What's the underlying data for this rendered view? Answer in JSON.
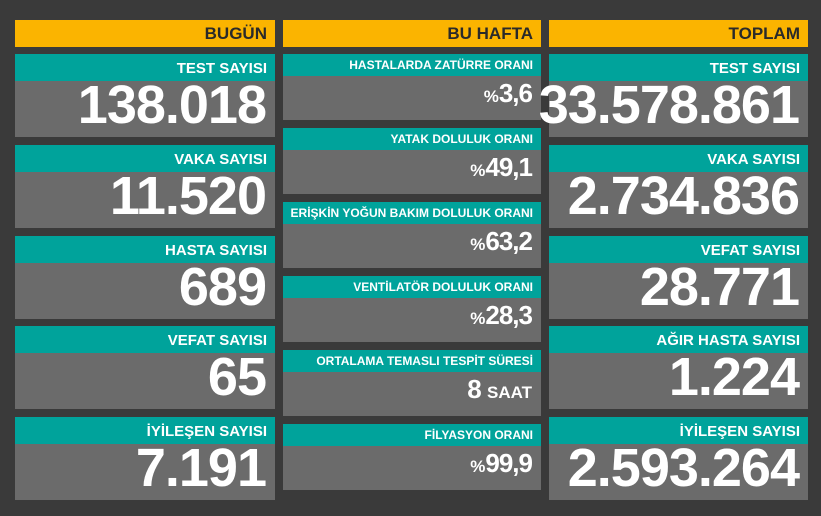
{
  "columns": [
    {
      "title": "BUGÜN",
      "items": [
        {
          "label": "TEST SAYISI",
          "value": "138.018"
        },
        {
          "label": "VAKA SAYISI",
          "value": "11.520"
        },
        {
          "label": "HASTA SAYISI",
          "value": "689"
        },
        {
          "label": "VEFAT SAYISI",
          "value": "65"
        },
        {
          "label": "İYİLEŞEN SAYISI",
          "value": "7.191"
        }
      ]
    },
    {
      "title": "BU HAFTA",
      "items": [
        {
          "label": "HASTALARDA ZATÜRRE ORANI",
          "prefix": "%",
          "value": "3,6"
        },
        {
          "label": "YATAK DOLULUK ORANI",
          "prefix": "%",
          "value": "49,1"
        },
        {
          "label": "ERİŞKİN YOĞUN BAKIM DOLULUK ORANI",
          "prefix": "%",
          "value": "63,2"
        },
        {
          "label": "VENTİLATÖR DOLULUK ORANI",
          "prefix": "%",
          "value": "28,3"
        },
        {
          "label": "ORTALAMA TEMASLI TESPİT SÜRESİ",
          "value": "8",
          "suffix": "SAAT"
        },
        {
          "label": "FİLYASYON ORANI",
          "prefix": "%",
          "value": "99,9"
        }
      ]
    },
    {
      "title": "TOPLAM",
      "items": [
        {
          "label": "TEST SAYISI",
          "value": "33.578.861"
        },
        {
          "label": "VAKA SAYISI",
          "value": "2.734.836"
        },
        {
          "label": "VEFAT SAYISI",
          "value": "28.771"
        },
        {
          "label": "AĞIR HASTA SAYISI",
          "value": "1.224"
        },
        {
          "label": "İYİLEŞEN SAYISI",
          "value": "2.593.264"
        }
      ]
    }
  ]
}
